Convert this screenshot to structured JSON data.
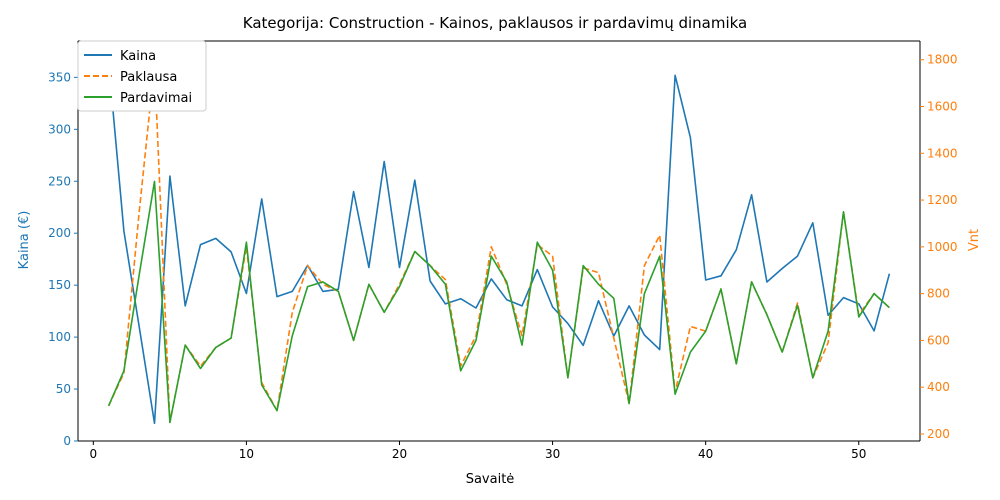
{
  "chart_data": {
    "type": "line",
    "title": "Kategorija: Construction - Kainos, paklausos ir pardavimų dinamika",
    "xlabel": "Savaitė",
    "ylabel_left": "Kaina (€)",
    "ylabel_right": "Vnt",
    "xlim": [
      -1,
      54
    ],
    "ylim_left": [
      0,
      385
    ],
    "ylim_right": [
      170,
      1880
    ],
    "x_ticks": [
      0,
      10,
      20,
      30,
      40,
      50
    ],
    "y_ticks_left": [
      0,
      50,
      100,
      150,
      200,
      250,
      300,
      350
    ],
    "y_ticks_right": [
      200,
      400,
      600,
      800,
      1000,
      1200,
      1400,
      1600,
      1800
    ],
    "legend_position": "top-left",
    "colors": {
      "left_axis": "#1f77b4",
      "right_axis": "#ff7f0e"
    },
    "x": [
      1,
      2,
      3,
      4,
      5,
      6,
      7,
      8,
      9,
      10,
      11,
      12,
      13,
      14,
      15,
      16,
      17,
      18,
      19,
      20,
      21,
      22,
      23,
      24,
      25,
      26,
      27,
      28,
      29,
      30,
      31,
      32,
      33,
      34,
      35,
      36,
      37,
      38,
      39,
      40,
      41,
      42,
      43,
      44,
      45,
      46,
      47,
      48,
      49,
      50,
      51,
      52
    ],
    "series": [
      {
        "name": "Kaina",
        "axis": "left",
        "color": "#1f77b4",
        "dash": "solid",
        "values": [
          365,
          202,
          110,
          17,
          255,
          130,
          189,
          195,
          182,
          142,
          233,
          139,
          144,
          169,
          144,
          146,
          240,
          167,
          269,
          167,
          251,
          154,
          132,
          137,
          128,
          156,
          136,
          130,
          165,
          129,
          113,
          92,
          135,
          101,
          130,
          102,
          88,
          352,
          292,
          155,
          159,
          184,
          237,
          153,
          166,
          178,
          210,
          121,
          138,
          132,
          106,
          161
        ]
      },
      {
        "name": "Paklausa",
        "axis": "right",
        "color": "#ff7f0e",
        "dash": "dashed",
        "values": [
          320,
          460,
          1150,
          1780,
          250,
          580,
          490,
          570,
          610,
          1000,
          420,
          300,
          720,
          920,
          840,
          810,
          600,
          840,
          720,
          840,
          980,
          920,
          860,
          490,
          620,
          1000,
          840,
          620,
          1010,
          960,
          440,
          910,
          890,
          610,
          330,
          920,
          1050,
          380,
          660,
          640,
          820,
          500,
          850,
          710,
          550,
          760,
          440,
          590,
          1150,
          710,
          800,
          740
        ]
      },
      {
        "name": "Pardavimai",
        "axis": "right",
        "color": "#2ca02c",
        "dash": "solid",
        "values": [
          320,
          470,
          880,
          1280,
          250,
          580,
          480,
          570,
          610,
          1020,
          410,
          300,
          620,
          830,
          850,
          810,
          600,
          840,
          720,
          830,
          980,
          920,
          840,
          470,
          600,
          960,
          850,
          580,
          1020,
          900,
          440,
          920,
          840,
          780,
          330,
          800,
          960,
          370,
          550,
          640,
          820,
          500,
          850,
          710,
          550,
          750,
          440,
          640,
          1150,
          700,
          800,
          740
        ]
      }
    ]
  }
}
